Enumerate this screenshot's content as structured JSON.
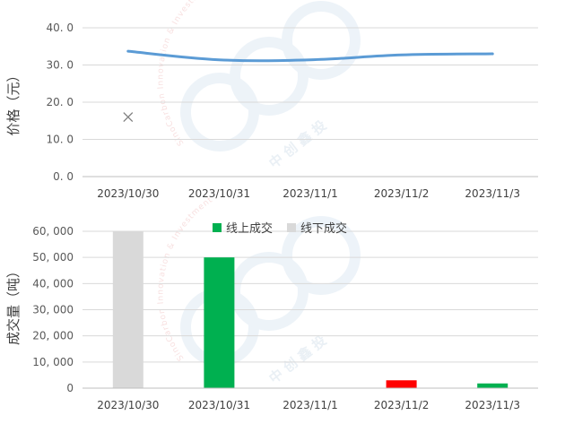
{
  "chart_data": [
    {
      "type": "line",
      "categories": [
        "2023/10/30",
        "2023/10/31",
        "2023/11/1",
        "2023/11/2",
        "2023/11/3"
      ],
      "series": [
        {
          "values": [
            33.7,
            31.4,
            31.4,
            32.7,
            33.0
          ],
          "color": "#5b9bd5"
        }
      ],
      "annotations": [
        {
          "x": "2023/10/30",
          "y": 16.0,
          "marker": "x",
          "color": "#808080"
        }
      ],
      "ylabel": "价格（元）",
      "ylim": [
        0,
        40
      ],
      "yticks": [
        "0. 0",
        "10. 0",
        "20. 0",
        "30. 0",
        "40. 0"
      ],
      "grid": true
    },
    {
      "type": "bar",
      "categories": [
        "2023/10/30",
        "2023/10/31",
        "2023/11/1",
        "2023/11/2",
        "2023/11/3"
      ],
      "series": [
        {
          "name": "线上成交",
          "values": [
            0,
            50000,
            0,
            3000,
            1800
          ],
          "colors": [
            "#00b050",
            "#00b050",
            "#00b050",
            "#ff0000",
            "#00b050"
          ]
        },
        {
          "name": "线下成交",
          "values": [
            60000,
            0,
            0,
            0,
            0
          ],
          "color": "#d9d9d9"
        }
      ],
      "ylabel": "成交量（吨）",
      "ylim": [
        0,
        60000
      ],
      "yticks": [
        "0",
        "10, 000",
        "20, 000",
        "30, 000",
        "40, 000",
        "50, 000",
        "60, 000"
      ],
      "legend": "top-center",
      "grid": true
    }
  ],
  "watermark": {
    "company_cn": "中 创 鑫 投",
    "arc_text": "SinoCarbon  Innovation & Investment"
  }
}
